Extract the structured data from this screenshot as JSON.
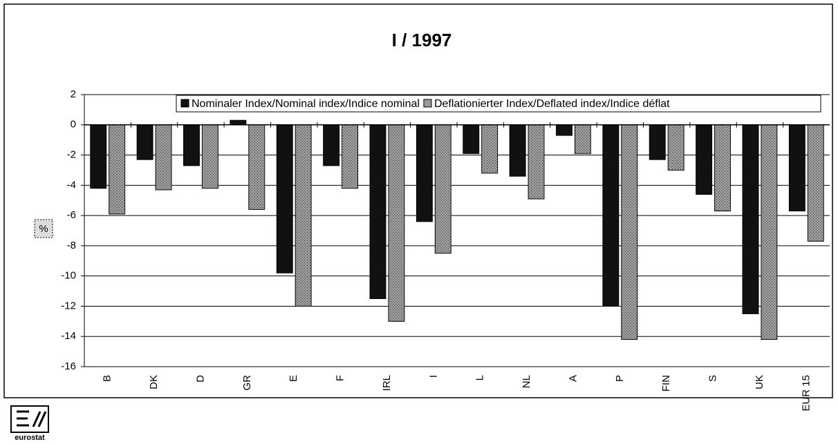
{
  "chart_data": {
    "type": "bar",
    "title": "I / 1997",
    "y_label": "%",
    "logo_text": "eurostat",
    "categories": [
      "B",
      "DK",
      "D",
      "GR",
      "E",
      "F",
      "IRL",
      "I",
      "L",
      "NL",
      "A",
      "P",
      "FIN",
      "S",
      "UK",
      "EUR 15"
    ],
    "series": [
      {
        "name": "Nominaler Index/Nominal index/Indice nominal",
        "color": "#111111",
        "values": [
          -4.2,
          -2.3,
          -2.7,
          0.3,
          -9.8,
          -2.7,
          -11.5,
          -6.4,
          -1.9,
          -3.4,
          -0.7,
          -12,
          -2.3,
          -4.6,
          -12.5,
          -5.7
        ]
      },
      {
        "name": "Deflationierter Index/Deflated index/Indice déflat",
        "color": "#9a9a9a",
        "values": [
          -5.9,
          -4.3,
          -4.2,
          -5.6,
          -12,
          -4.2,
          -13,
          -8.5,
          -3.2,
          -4.9,
          -1.9,
          -14.2,
          -3,
          -5.7,
          -14.2,
          -7.7
        ]
      }
    ],
    "ylim": [
      -16,
      2
    ],
    "yticks": [
      -16,
      -14,
      -12,
      -10,
      -8,
      -6,
      -4,
      -2,
      0,
      2
    ],
    "grid": true
  }
}
